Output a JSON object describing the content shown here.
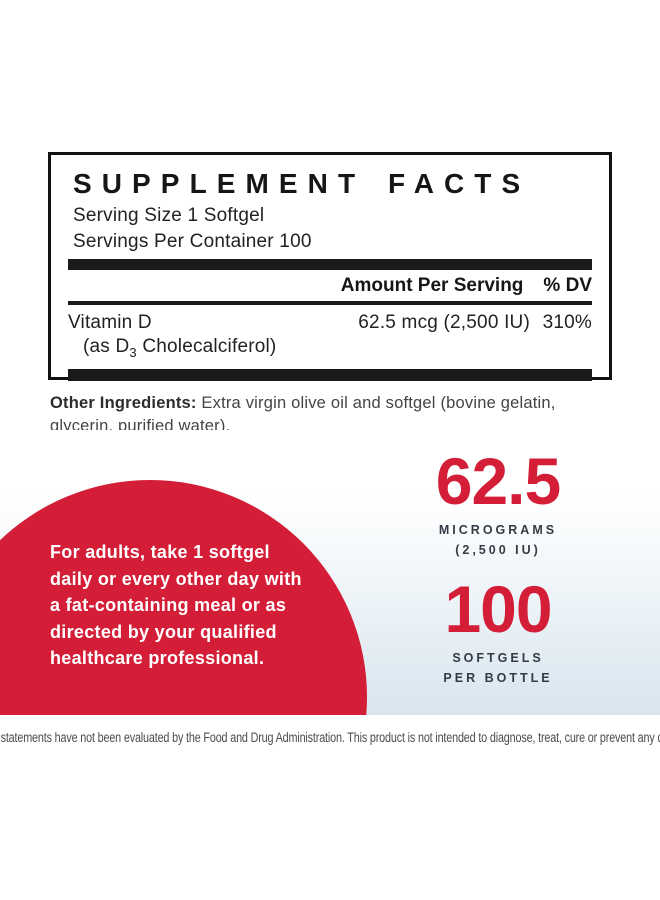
{
  "colors": {
    "accent_red": "#d41e38",
    "bar_black": "#1a1a1a",
    "stat_label_dark": "#333b44",
    "gradient_blue": "#d9e5ef"
  },
  "supplement_facts": {
    "title": "SUPPLEMENT FACTS",
    "serving_size": "Serving Size 1 Softgel",
    "servings_per_container": "Servings Per Container 100",
    "header": {
      "amount_label": "Amount Per Serving",
      "dv_label": "% DV"
    },
    "rows": [
      {
        "name": "Vitamin D",
        "sub_pre": "(as D",
        "sub_script": "3",
        "sub_post": " Cholecalciferol)",
        "amount": "62.5 mcg (2,500 IU)",
        "dv": "310%"
      }
    ]
  },
  "other_ingredients": {
    "label": "Other Ingredients:",
    "text": " Extra virgin olive oil and softgel (bovine gelatin, glycerin, purified water)."
  },
  "directions": {
    "lines": [
      "For adults, take 1 softgel",
      "daily or every other day with",
      "a fat-containing meal or as",
      "directed by your qualified",
      "healthcare professional."
    ]
  },
  "hero_stats": [
    {
      "value": "62.5",
      "label_line1": "MICROGRAMS",
      "label_line2": "(2,500 IU)"
    },
    {
      "value": "100",
      "label_line1": "SOFTGELS",
      "label_line2": "PER BOTTLE"
    }
  ],
  "footer": {
    "disclaimer": "*These statements have not been evaluated by the Food and Drug Administration. This product is not intended to diagnose, treat, cure or prevent any disease."
  }
}
